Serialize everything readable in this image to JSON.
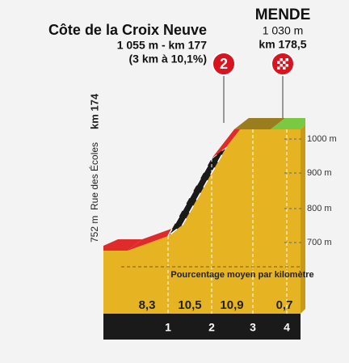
{
  "climb": {
    "name": "Côte de la Croix Neuve",
    "summit": "1 055 m - km 177",
    "detail": "(3 km à 10,1%)",
    "category": "2"
  },
  "finish": {
    "name": "MENDE",
    "altitude": "1 030 m",
    "km": "km 178,5"
  },
  "start": {
    "altitude": "752 m",
    "street": "Rue des Écoles",
    "km": "km 174"
  },
  "altitude_ticks": [
    "1000 m",
    "900 m",
    "800 m",
    "700 m"
  ],
  "caption": "Pourcentage moyen par kilomètre",
  "gradients": [
    "8,3",
    "10,5",
    "10,9",
    "0,7"
  ],
  "km_markers": [
    "1",
    "2",
    "3",
    "4"
  ]
}
